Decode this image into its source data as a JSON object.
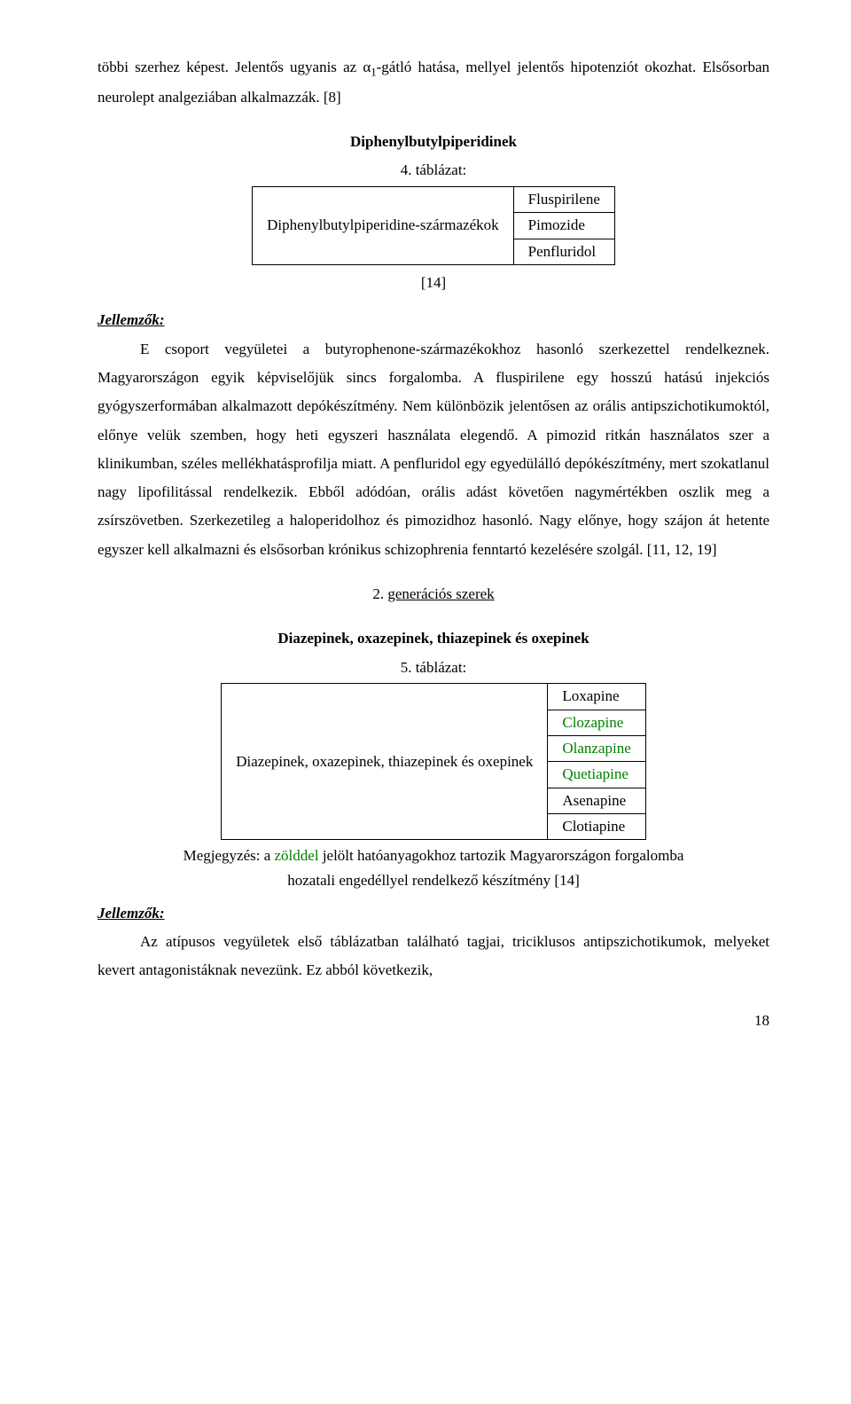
{
  "p1": "többi szerhez képest. Jelentős ugyanis az α",
  "p1sub": "1",
  "p1b": "-gátló hatása, mellyel jelentős hipotenziót okozhat. Elsősorban neurolept analgeziában alkalmazzák. [8]",
  "heading1": "Diphenylbutylpiperidinek",
  "table1_caption": "4. táblázat:",
  "table1_left": "Diphenylbutylpiperidine-származékok",
  "table1_r1": "Fluspirilene",
  "table1_r2": "Pimozide",
  "table1_r3": "Penfluridol",
  "cite1": "[14]",
  "subhead1": "Jellemzők:",
  "p2": "E csoport vegyületei a butyrophenone-származékokhoz hasonló szerkezettel rendelkeznek. Magyarországon egyik képviselőjük sincs forgalomba. A fluspirilene egy hosszú hatású injekciós gyógyszerformában alkalmazott depókészítmény. Nem különbözik jelentősen az orális antipszichotikumoktól, előnye velük szemben, hogy heti egyszeri használata elegendő. A pimozid ritkán használatos szer a klinikumban, széles mellékhatásprofilja miatt. A penfluridol egy egyedülálló depókészítmény, mert szokatlanul nagy lipofilitással rendelkezik. Ebből adódóan, orális adást követően nagymértékben oszlik meg a zsírszövetben. Szerkezetileg a haloperidolhoz és pimozidhoz hasonló. Nagy előnye, hogy szájon át hetente egyszer kell alkalmazni és elsősorban krónikus schizophrenia fenntartó kezelésére szolgál. [11, 12, 19]",
  "gen_num": "2. ",
  "gen_txt": "generációs szerek",
  "heading2": "Diazepinek, oxazepinek, thiazepinek és oxepinek",
  "table2_caption": "5. táblázat:",
  "table2_left": "Diazepinek, oxazepinek, thiazepinek és oxepinek",
  "t2r1": "Loxapine",
  "t2r2": "Clozapine",
  "t2r3": "Olanzapine",
  "t2r4": "Quetiapine",
  "t2r5": "Asenapine",
  "t2r6": "Clotiapine",
  "note_a": "Megjegyzés: a ",
  "note_green": "zölddel",
  "note_b": " jelölt hatóanyagokhoz tartozik Magyarországon forgalomba",
  "note_c": "hozatali engedéllyel rendelkező készítmény [14]",
  "subhead2": "Jellemzők:",
  "p3": "Az atípusos vegyületek első táblázatban található tagjai, triciklusos antipszichotikumok, melyeket kevert antagonistáknak nevezünk. Ez abból következik,",
  "page_number": "18",
  "green_color": "#008000"
}
